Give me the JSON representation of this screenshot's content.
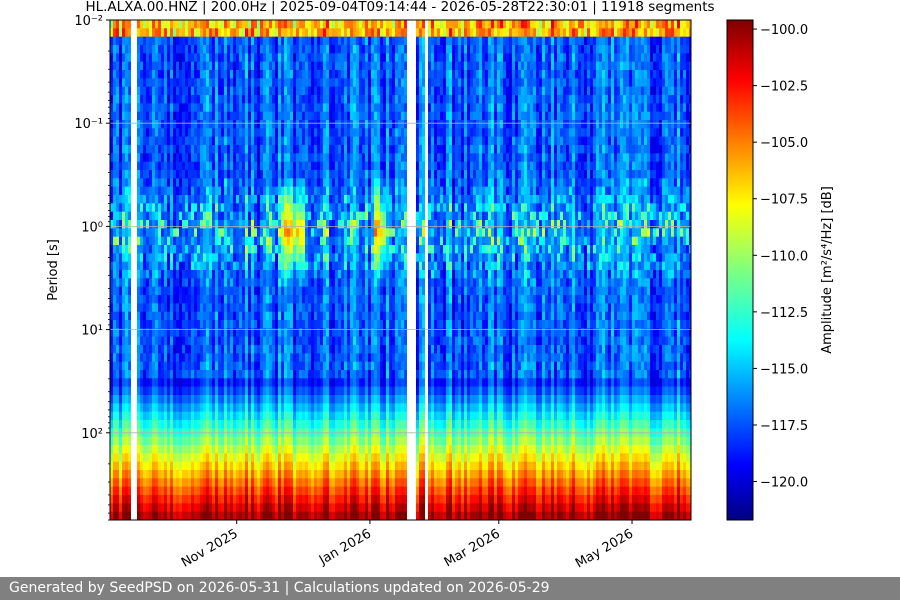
{
  "title": "HL.ALXA.00.HNZ | 200.0Hz | 2025-09-04T09:14:44 - 2026-05-28T22:30:01 | 11918 segments",
  "footer": "Generated by SeedPSD on 2026-05-31 | Calculations updated on 2026-05-29",
  "chart_data": {
    "type": "heatmap",
    "title": "HL.ALXA.00.HNZ | 200.0Hz | 2025-09-04T09:14:44 - 2026-05-28T22:30:01 | 11918 segments",
    "xlabel": "",
    "ylabel": "Period [s]",
    "y_scale": "log",
    "y_inverted": true,
    "y_range": [
      0.01,
      700
    ],
    "y_ticks": [
      {
        "value": 0.01,
        "label": "10⁻²"
      },
      {
        "value": 0.1,
        "label": "10⁻¹"
      },
      {
        "value": 1,
        "label": "10⁰"
      },
      {
        "value": 10,
        "label": "10¹"
      },
      {
        "value": 100,
        "label": "10²"
      }
    ],
    "x_range": [
      "2025-09-04",
      "2026-05-28"
    ],
    "x_ticks": [
      "Nov 2025",
      "Jan 2026",
      "Mar 2026",
      "May 2026"
    ],
    "x_tick_dates": [
      "2025-11-01",
      "2026-01-01",
      "2026-03-01",
      "2026-05-01"
    ],
    "data_gaps": [
      [
        "2025-09-13",
        "2025-09-16"
      ],
      [
        "2026-01-17",
        "2026-01-22"
      ],
      [
        "2026-01-25",
        "2026-01-27"
      ]
    ],
    "high_amplitude_events": [
      [
        "2025-11-20",
        "2025-12-01"
      ],
      [
        "2026-01-02",
        "2026-01-07"
      ]
    ],
    "colorbar": {
      "label": "Amplitude [m²/s⁴/Hz] [dB]",
      "range": [
        -121.7,
        -99.6
      ],
      "ticks": [
        -100.0,
        -102.5,
        -105.0,
        -107.5,
        -110.0,
        -112.5,
        -115.0,
        -117.5,
        -120.0
      ],
      "tick_labels": [
        "−100.0",
        "−102.5",
        "−105.0",
        "−107.5",
        "−110.0",
        "−112.5",
        "−115.0",
        "−117.5",
        "−120.0"
      ],
      "colormap": "jet"
    },
    "grid": true
  },
  "colors": {
    "background": "#ffffff",
    "footer_bg": "#808080",
    "footer_text": "#ffffff",
    "grid": "#b0b0b0"
  }
}
